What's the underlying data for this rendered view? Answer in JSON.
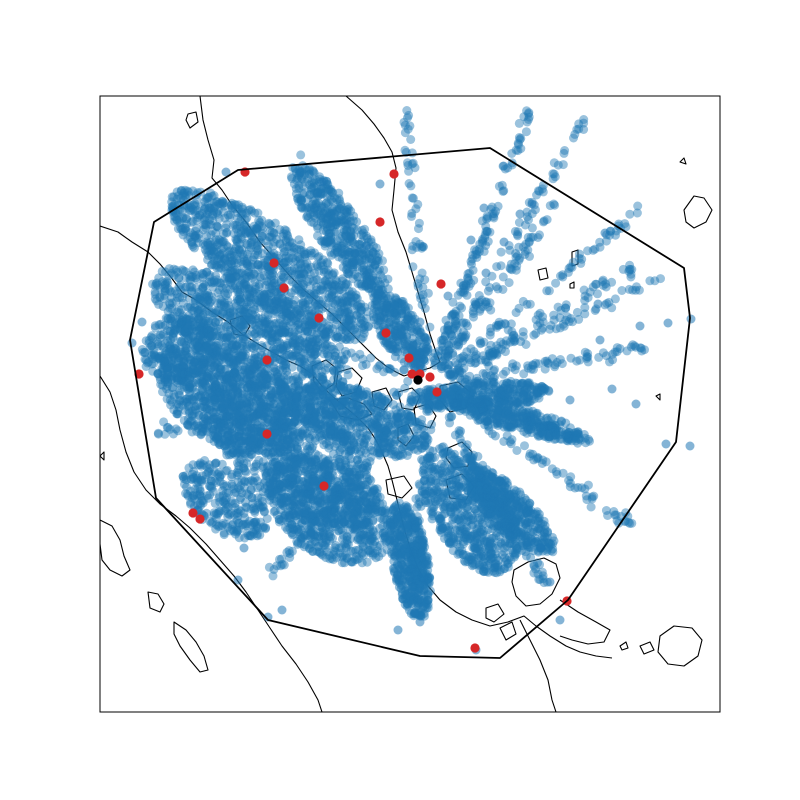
{
  "chart_data": {
    "type": "scatter",
    "title": "",
    "xlabel": "",
    "ylabel": "",
    "grid": false,
    "legend": "none",
    "ticks": "none",
    "series": [
      {
        "marker": "circle",
        "color": "#1f77b4",
        "alpha": 0.45
      },
      {
        "marker": "circle",
        "color": "#d62728",
        "alpha": 1.0
      },
      {
        "marker": "circle",
        "color": "#000000",
        "alpha": 1.0
      }
    ],
    "boundary": {
      "color": "#000000",
      "closed": true
    },
    "coastline_color": "#000000"
  }
}
